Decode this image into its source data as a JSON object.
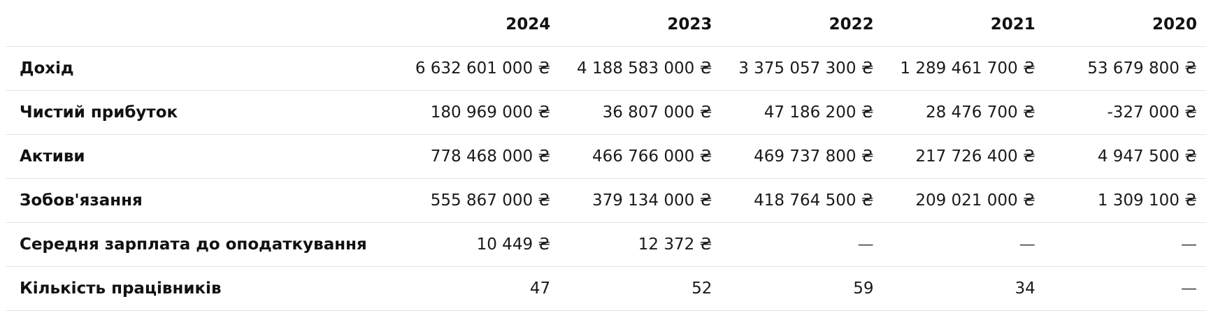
{
  "table": {
    "years": [
      "2024",
      "2023",
      "2022",
      "2021",
      "2020"
    ],
    "rows": [
      {
        "label": "Дохід",
        "values": [
          "6 632 601 000 ₴",
          "4 188 583 000 ₴",
          "3 375 057 300 ₴",
          "1 289 461 700 ₴",
          "53 679 800 ₴"
        ]
      },
      {
        "label": "Чистий прибуток",
        "values": [
          "180 969 000 ₴",
          "36 807 000 ₴",
          "47 186 200 ₴",
          "28 476 700 ₴",
          "-327 000 ₴"
        ]
      },
      {
        "label": "Активи",
        "values": [
          "778 468 000 ₴",
          "466 766 000 ₴",
          "469 737 800 ₴",
          "217 726 400 ₴",
          "4 947 500 ₴"
        ]
      },
      {
        "label": "Зобов'язання",
        "values": [
          "555 867 000 ₴",
          "379 134 000 ₴",
          "418 764 500 ₴",
          "209 021 000 ₴",
          "1 309 100 ₴"
        ]
      },
      {
        "label": "Середня зарплата до оподаткування",
        "values": [
          "10 449 ₴",
          "12 372 ₴",
          "—",
          "—",
          "—"
        ]
      },
      {
        "label": "Кількість працівників",
        "values": [
          "47",
          "52",
          "59",
          "34",
          "—"
        ]
      }
    ]
  }
}
